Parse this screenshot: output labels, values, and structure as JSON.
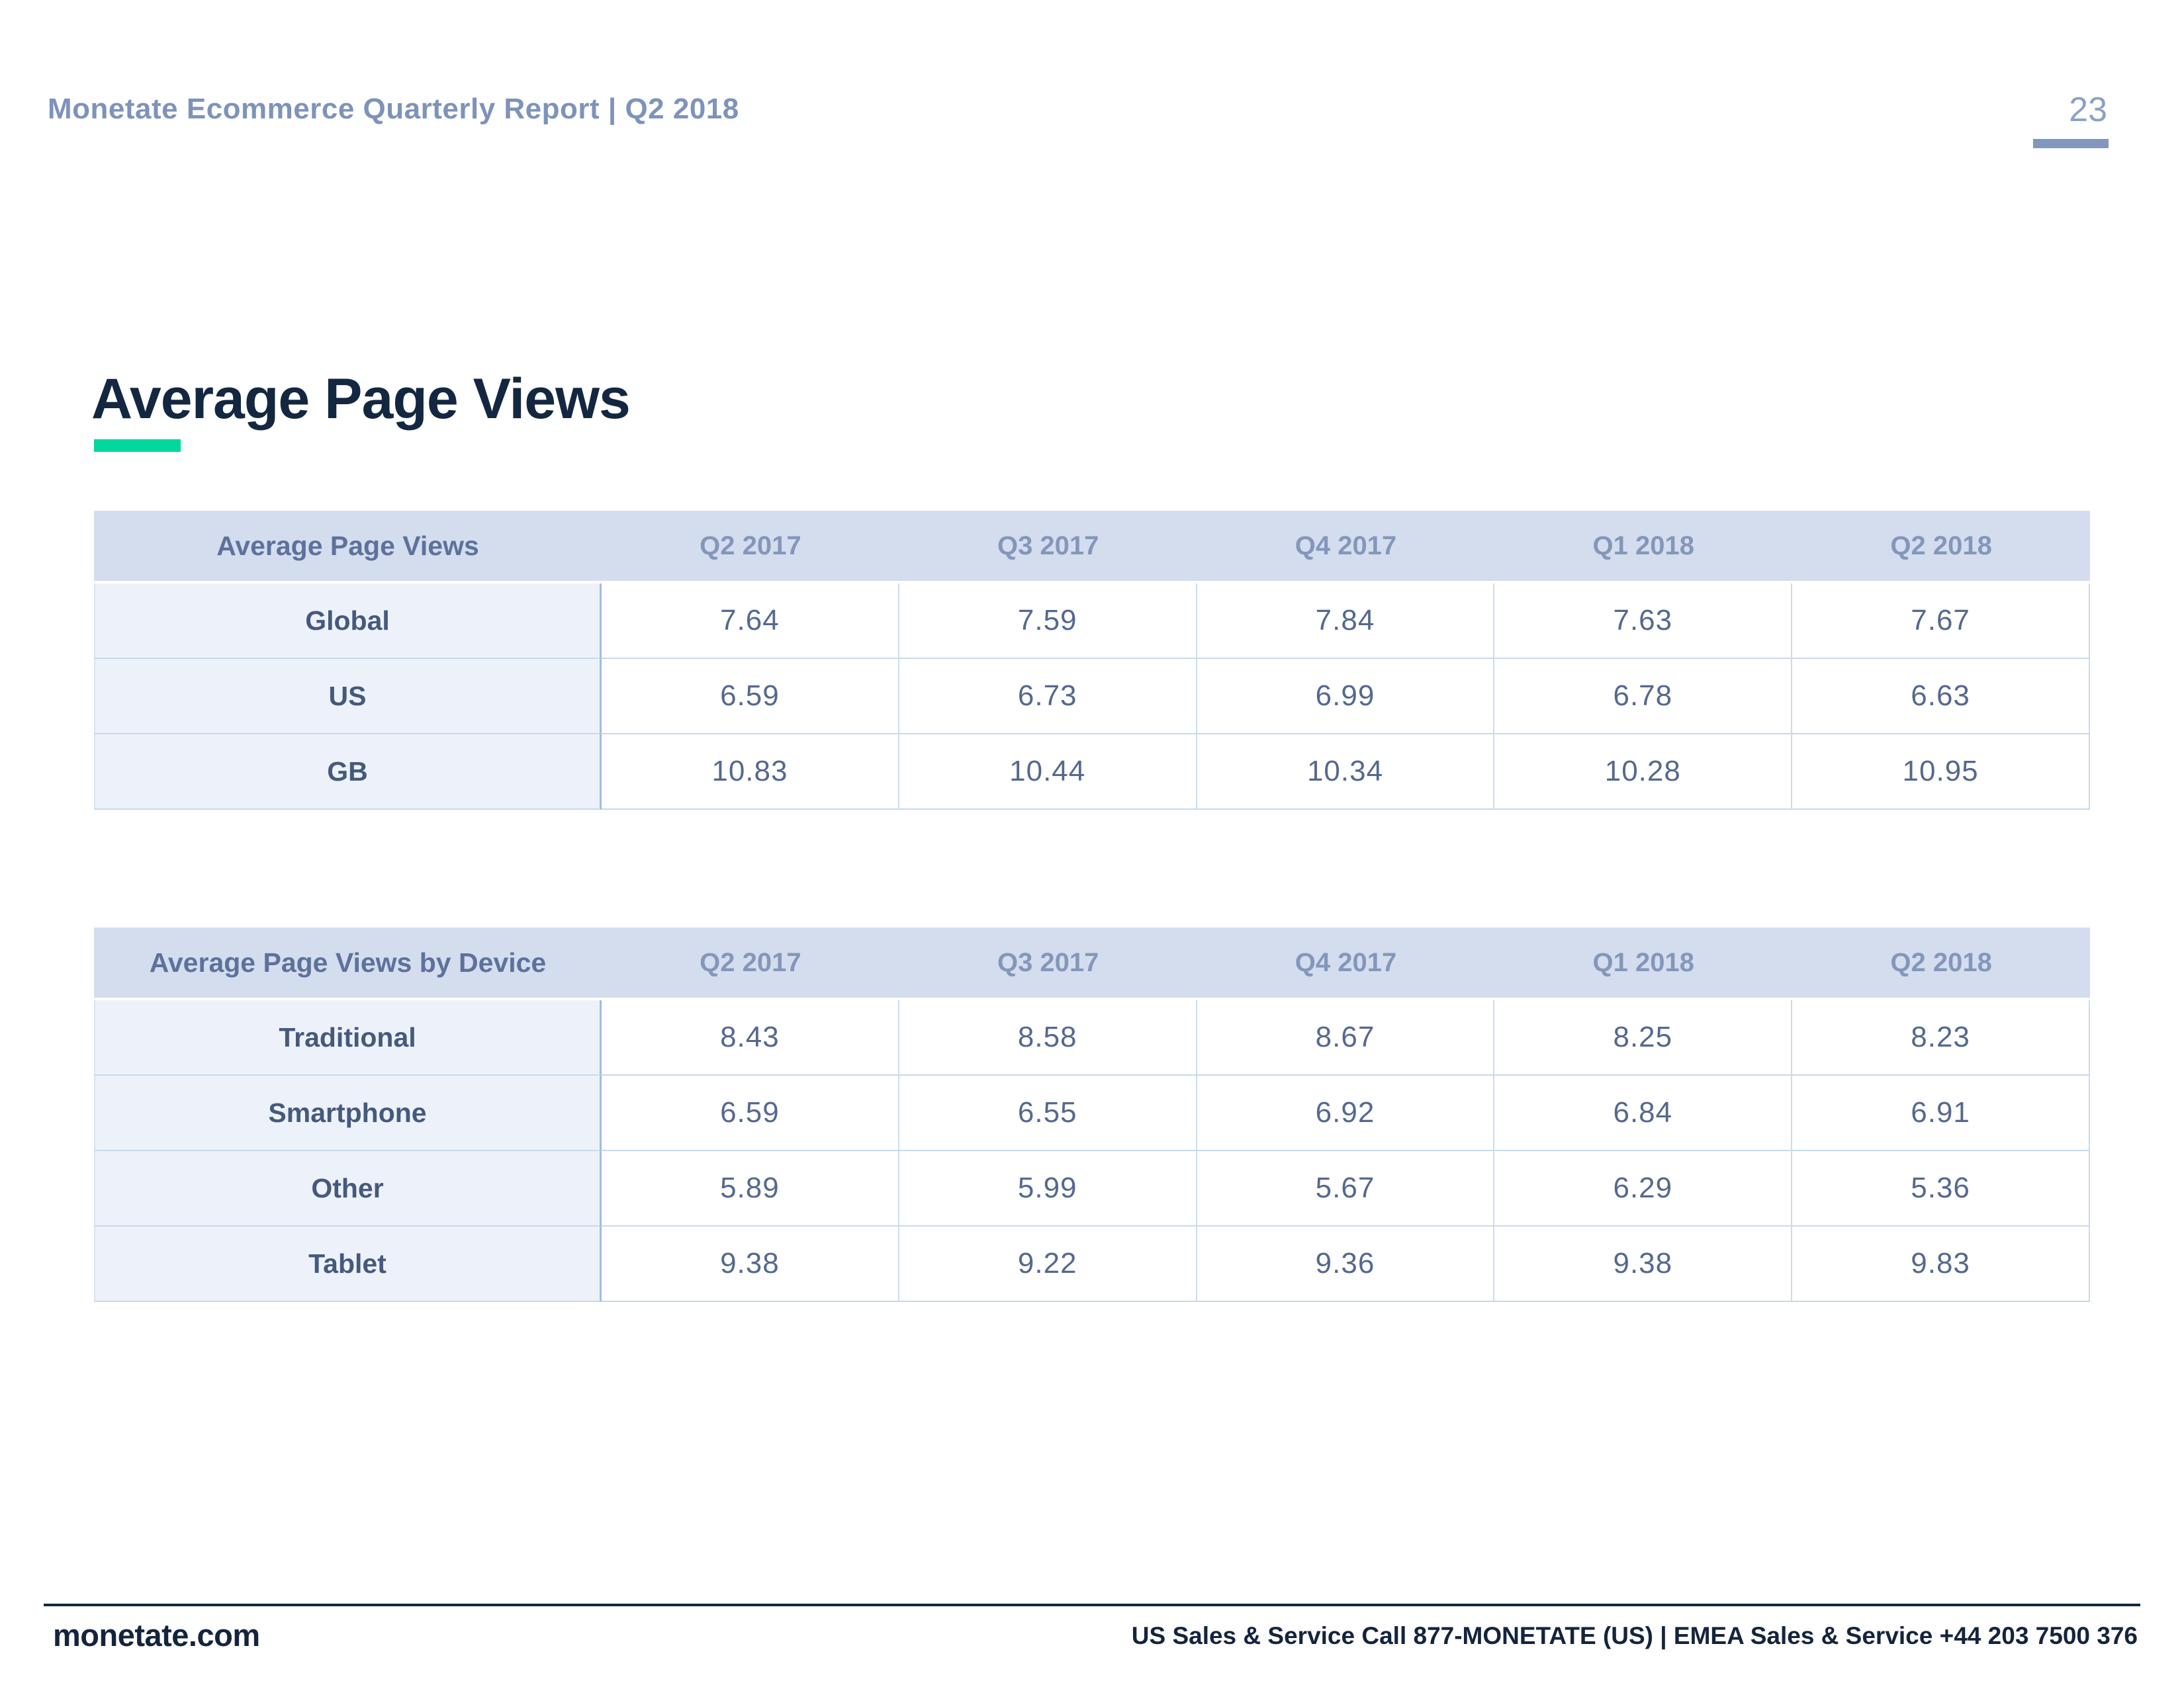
{
  "page": {
    "header_title": "Monetate Ecommerce Quarterly Report | Q2 2018",
    "page_number": "23",
    "title": "Average Page Views"
  },
  "tables": [
    {
      "label_header": "Average Page Views",
      "columns": [
        "Q2 2017",
        "Q3 2017",
        "Q4 2017",
        "Q1 2018",
        "Q2 2018"
      ],
      "rows": [
        {
          "label": "Global",
          "values": [
            "7.64",
            "7.59",
            "7.84",
            "7.63",
            "7.67"
          ]
        },
        {
          "label": "US",
          "values": [
            "6.59",
            "6.73",
            "6.99",
            "6.78",
            "6.63"
          ]
        },
        {
          "label": "GB",
          "values": [
            "10.83",
            "10.44",
            "10.34",
            "10.28",
            "10.95"
          ]
        }
      ]
    },
    {
      "label_header": "Average Page Views by Device",
      "columns": [
        "Q2 2017",
        "Q3 2017",
        "Q4 2017",
        "Q1 2018",
        "Q2 2018"
      ],
      "rows": [
        {
          "label": "Traditional",
          "values": [
            "8.43",
            "8.58",
            "8.67",
            "8.25",
            "8.23"
          ]
        },
        {
          "label": "Smartphone",
          "values": [
            "6.59",
            "6.55",
            "6.92",
            "6.84",
            "6.91"
          ]
        },
        {
          "label": "Other",
          "values": [
            "5.89",
            "5.99",
            "5.67",
            "6.29",
            "5.36"
          ]
        },
        {
          "label": "Tablet",
          "values": [
            "9.38",
            "9.22",
            "9.36",
            "9.38",
            "9.83"
          ]
        }
      ]
    }
  ],
  "footer": {
    "site": "monetate.com",
    "contact": "US Sales & Service Call 877-MONETATE (US) | EMEA Sales & Service +44 203 7500 376"
  },
  "colors": {
    "accent_green": "#03d7a0",
    "title_navy": "#142740",
    "header_blue": "#7e93ba",
    "table_header_bg": "#d3ddee",
    "label_cell_bg": "#edf2fa",
    "footer_navy": "#15243d"
  }
}
